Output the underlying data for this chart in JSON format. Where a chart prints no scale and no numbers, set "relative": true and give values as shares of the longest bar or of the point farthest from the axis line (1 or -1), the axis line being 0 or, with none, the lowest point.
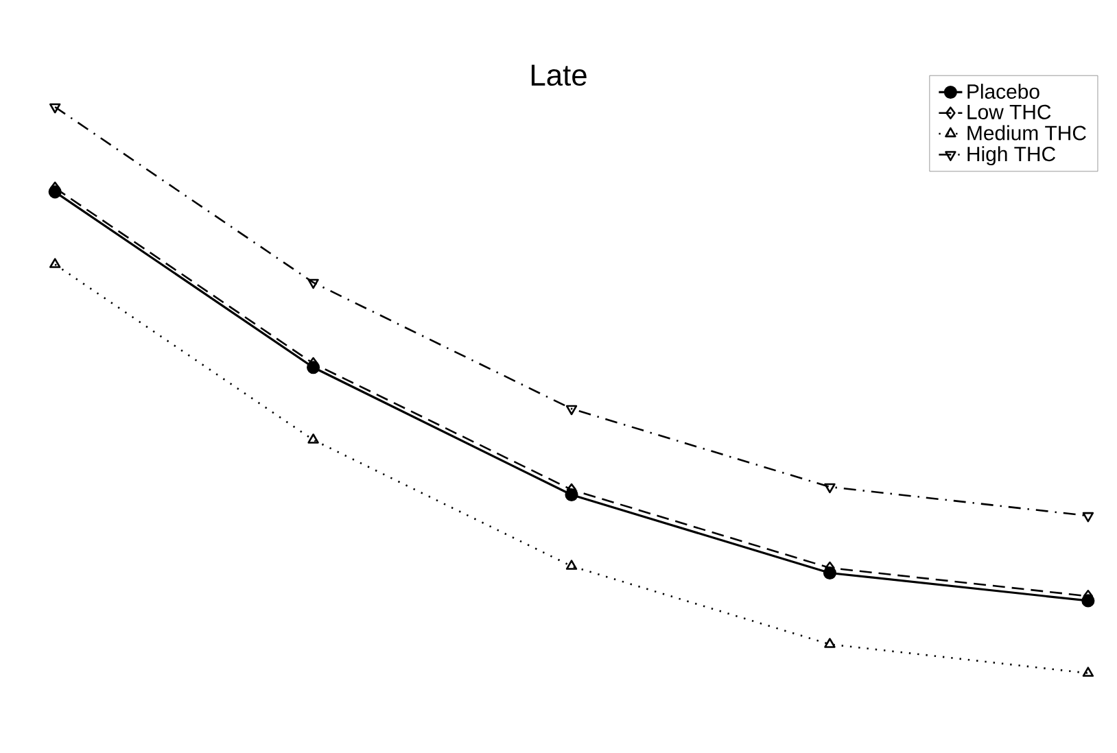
{
  "chart_data": {
    "type": "line",
    "title": "Late",
    "relative": true,
    "categories": [
      null,
      null,
      null,
      null,
      null
    ],
    "series": [
      {
        "name": "Placebo",
        "color": "#000000",
        "marker": "circle",
        "line_style": "solid",
        "values": [
          0.85,
          0.54,
          0.315,
          0.177,
          0.128
        ]
      },
      {
        "name": "Low THC",
        "color": "#000000",
        "marker": "diamond",
        "line_style": "dashed",
        "values": [
          0.857,
          0.547,
          0.324,
          0.186,
          0.136
        ]
      },
      {
        "name": "Medium THC",
        "color": "#000000",
        "marker": "triangle",
        "line_style": "dotted",
        "values": [
          0.722,
          0.412,
          0.189,
          0.051,
          0.0
        ]
      },
      {
        "name": "High THC",
        "color": "#000000",
        "marker": "triangle-down",
        "line_style": "dashdotted",
        "values": [
          1.0,
          0.69,
          0.467,
          0.329,
          0.278
        ]
      }
    ],
    "legend": "top right"
  }
}
